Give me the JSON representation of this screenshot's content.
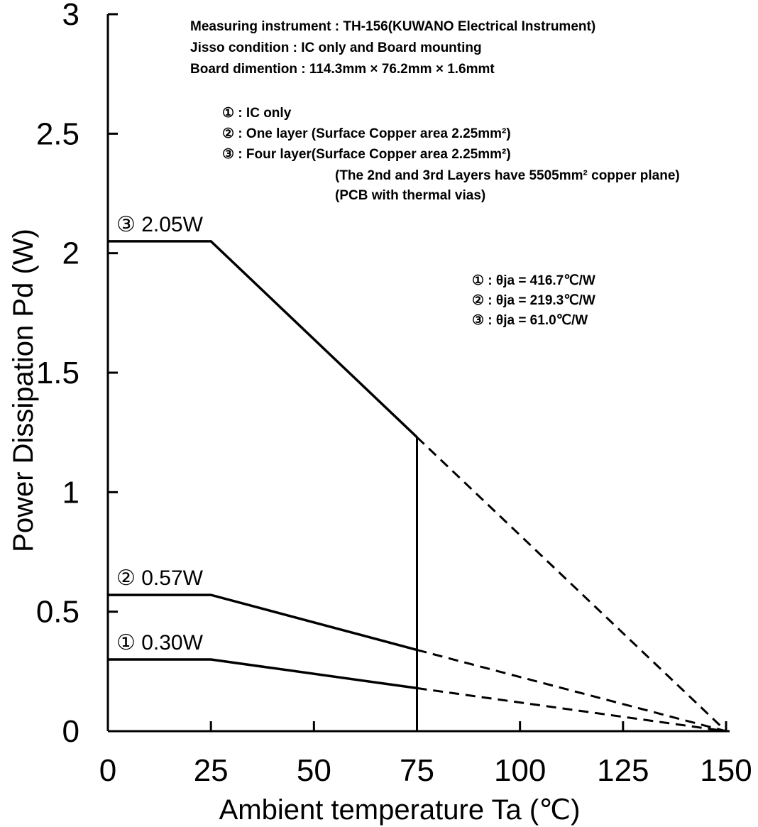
{
  "chart_data": {
    "type": "line",
    "xlabel": "Ambient temperature Ta (℃)",
    "ylabel": "Power Dissipation Pd (W)",
    "xlim": [
      0,
      150
    ],
    "ylim": [
      0,
      3
    ],
    "x_ticks": [
      "0",
      "25",
      "50",
      "75",
      "100",
      "125",
      "150"
    ],
    "y_ticks": [
      "0",
      "0.5",
      "1",
      "1.5",
      "2",
      "2.5",
      "3"
    ],
    "grid": false,
    "series": [
      {
        "name": "① 0.30W",
        "points": [
          [
            0,
            0.3
          ],
          [
            25,
            0.3
          ],
          [
            75,
            0.18
          ]
        ],
        "extension": [
          [
            75,
            0.18
          ],
          [
            150,
            0
          ]
        ]
      },
      {
        "name": "② 0.57W",
        "points": [
          [
            0,
            0.57
          ],
          [
            25,
            0.57
          ],
          [
            75,
            0.34
          ]
        ],
        "extension": [
          [
            75,
            0.34
          ],
          [
            150,
            0
          ]
        ]
      },
      {
        "name": "③ 2.05W",
        "points": [
          [
            0,
            2.05
          ],
          [
            25,
            2.05
          ],
          [
            75,
            1.23
          ]
        ],
        "extension": [
          [
            75,
            1.23
          ],
          [
            150,
            0
          ]
        ]
      }
    ],
    "vertical_marker": {
      "x": 75,
      "y_top": 1.23
    },
    "annotations": {
      "measurement": [
        "Measuring instrument : TH-156(KUWANO Electrical Instrument)",
        "Jisso condition : IC only  and Board mounting",
        "Board dimention : 114.3mm × 76.2mm × 1.6mmt"
      ],
      "legend_notes": [
        "① : IC only",
        "② : One layer (Surface Copper area 2.25mm²)",
        "③ : Four layer(Surface Copper area 2.25mm²)",
        "(The 2nd and 3rd  Layers have 5505mm² copper plane)",
        "(PCB with thermal vias)"
      ],
      "theta": [
        "① : θja = 416.7℃/W",
        "② : θja = 219.3℃/W",
        "③ : θja =   61.0℃/W"
      ]
    }
  }
}
